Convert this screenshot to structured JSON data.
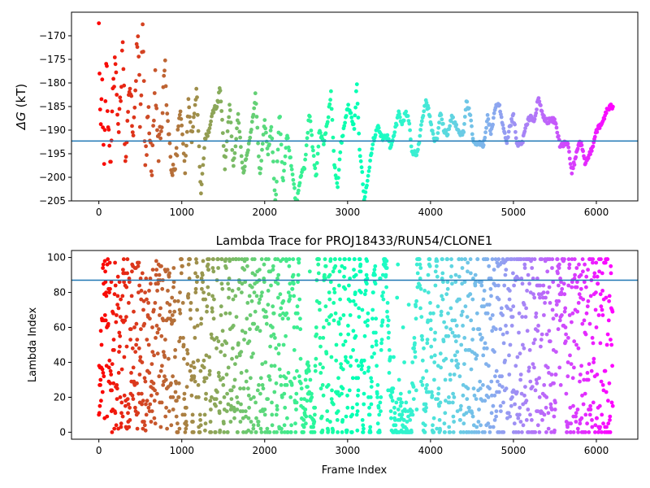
{
  "chart_data": [
    {
      "type": "scatter",
      "title": "",
      "xlabel": "",
      "ylabel": "ΔG (kT)",
      "ylabel_symbol": "ΔG",
      "ylabel_unit": "(kT)",
      "xlim": [
        -330,
        6500
      ],
      "ylim": [
        -205,
        -165
      ],
      "x_ticks": [
        0,
        1000,
        2000,
        3000,
        4000,
        5000,
        6000
      ],
      "x_tick_labels": [
        "0",
        "1000",
        "2000",
        "3000",
        "4000",
        "5000",
        "6000"
      ],
      "y_ticks": [
        -205,
        -200,
        -195,
        -190,
        -185,
        -180,
        -175,
        -170
      ],
      "y_tick_labels": [
        "−205",
        "−200",
        "−195",
        "−190",
        "−185",
        "−180",
        "−175",
        "−170"
      ],
      "hline": {
        "y": -192.3,
        "color": "#1f77b4"
      },
      "colormap": "rainbow (red at first frame → violet at last frame)",
      "x_max": 6200,
      "grid": false,
      "trace_anchors": [
        [
          0,
          -170
        ],
        [
          20,
          -190
        ],
        [
          40,
          -180
        ],
        [
          60,
          -200
        ],
        [
          90,
          -174
        ],
        [
          110,
          -188
        ],
        [
          140,
          -196
        ],
        [
          170,
          -181
        ],
        [
          200,
          -176
        ],
        [
          230,
          -192
        ],
        [
          260,
          -184
        ],
        [
          290,
          -170
        ],
        [
          320,
          -198
        ],
        [
          350,
          -186
        ],
        [
          380,
          -178
        ],
        [
          410,
          -194
        ],
        [
          440,
          -183
        ],
        [
          470,
          -166
        ],
        [
          500,
          -190
        ],
        [
          530,
          -168
        ],
        [
          560,
          -198
        ],
        [
          600,
          -185
        ],
        [
          640,
          -200
        ],
        [
          680,
          -180
        ],
        [
          720,
          -195
        ],
        [
          760,
          -188
        ],
        [
          800,
          -176
        ],
        [
          840,
          -192
        ],
        [
          880,
          -198
        ],
        [
          930,
          -196
        ],
        [
          990,
          -186
        ],
        [
          1040,
          -199
        ],
        [
          1080,
          -184
        ],
        [
          1120,
          -192
        ],
        [
          1180,
          -181
        ],
        [
          1230,
          -204
        ],
        [
          1280,
          -192
        ],
        [
          1330,
          -190
        ],
        [
          1380,
          -186
        ],
        [
          1440,
          -184
        ],
        [
          1460,
          -180
        ],
        [
          1520,
          -198
        ],
        [
          1580,
          -184
        ],
        [
          1620,
          -198
        ],
        [
          1680,
          -187
        ],
        [
          1740,
          -199
        ],
        [
          1800,
          -194
        ],
        [
          1860,
          -187
        ],
        [
          1890,
          -182
        ],
        [
          1940,
          -200
        ],
        [
          2000,
          -188
        ],
        [
          2040,
          -195
        ],
        [
          2080,
          -189
        ],
        [
          2130,
          -206
        ],
        [
          2180,
          -186
        ],
        [
          2220,
          -201
        ],
        [
          2270,
          -191
        ],
        [
          2310,
          -196
        ],
        [
          2350,
          -201
        ],
        [
          2380,
          -206
        ],
        [
          2430,
          -200
        ],
        [
          2480,
          -198
        ],
        [
          2540,
          -186
        ],
        [
          2580,
          -194
        ],
        [
          2620,
          -200
        ],
        [
          2660,
          -190
        ],
        [
          2710,
          -193
        ],
        [
          2760,
          -188
        ],
        [
          2800,
          -182
        ],
        [
          2840,
          -197
        ],
        [
          2880,
          -202
        ],
        [
          2920,
          -193
        ],
        [
          2960,
          -189
        ],
        [
          3000,
          -185
        ],
        [
          3040,
          -186
        ],
        [
          3080,
          -190
        ],
        [
          3110,
          -180
        ],
        [
          3140,
          -193
        ],
        [
          3170,
          -198
        ],
        [
          3200,
          -205
        ],
        [
          3250,
          -199
        ],
        [
          3300,
          -193
        ],
        [
          3360,
          -189
        ],
        [
          3420,
          -192
        ],
        [
          3480,
          -191
        ],
        [
          3520,
          -194
        ],
        [
          3560,
          -191
        ],
        [
          3620,
          -186
        ],
        [
          3660,
          -189
        ],
        [
          3700,
          -186
        ],
        [
          3740,
          -188
        ],
        [
          3780,
          -195
        ],
        [
          3840,
          -195
        ],
        [
          3900,
          -188
        ],
        [
          3940,
          -184
        ],
        [
          3980,
          -186
        ],
        [
          4040,
          -192
        ],
        [
          4080,
          -192
        ],
        [
          4120,
          -186
        ],
        [
          4160,
          -190
        ],
        [
          4200,
          -191
        ],
        [
          4260,
          -187
        ],
        [
          4300,
          -189
        ],
        [
          4360,
          -191
        ],
        [
          4400,
          -190
        ],
        [
          4430,
          -184
        ],
        [
          4470,
          -186
        ],
        [
          4520,
          -193
        ],
        [
          4580,
          -193
        ],
        [
          4640,
          -193
        ],
        [
          4690,
          -187
        ],
        [
          4730,
          -191
        ],
        [
          4780,
          -185
        ],
        [
          4830,
          -185
        ],
        [
          4880,
          -190
        ],
        [
          4920,
          -193
        ],
        [
          4960,
          -189
        ],
        [
          5000,
          -187
        ],
        [
          5040,
          -193
        ],
        [
          5100,
          -193
        ],
        [
          5140,
          -190
        ],
        [
          5200,
          -187
        ],
        [
          5260,
          -188
        ],
        [
          5300,
          -183
        ],
        [
          5340,
          -186
        ],
        [
          5380,
          -188
        ],
        [
          5440,
          -188
        ],
        [
          5500,
          -188
        ],
        [
          5560,
          -193
        ],
        [
          5620,
          -193
        ],
        [
          5660,
          -193
        ],
        [
          5700,
          -199
        ],
        [
          5750,
          -196
        ],
        [
          5780,
          -193
        ],
        [
          5820,
          -193
        ],
        [
          5860,
          -197
        ],
        [
          5900,
          -196
        ],
        [
          5960,
          -193
        ],
        [
          6000,
          -190
        ],
        [
          6060,
          -189
        ],
        [
          6120,
          -186
        ],
        [
          6180,
          -185
        ]
      ]
    },
    {
      "type": "scatter",
      "title": "Lambda Trace for PROJ18433/RUN54/CLONE1",
      "xlabel": "Frame Index",
      "ylabel": "Lambda Index",
      "xlim": [
        -330,
        6500
      ],
      "ylim": [
        -4,
        104
      ],
      "x_ticks": [
        0,
        1000,
        2000,
        3000,
        4000,
        5000,
        6000
      ],
      "x_tick_labels": [
        "0",
        "1000",
        "2000",
        "3000",
        "4000",
        "5000",
        "6000"
      ],
      "y_ticks": [
        0,
        20,
        40,
        60,
        80,
        100
      ],
      "y_tick_labels": [
        "0",
        "20",
        "40",
        "60",
        "80",
        "100"
      ],
      "hline": {
        "y": 87,
        "color": "#1f77b4"
      },
      "colormap": "rainbow (red at first frame → violet at last frame)",
      "x_max": 6200,
      "y_range": [
        0,
        99
      ],
      "grid": false
    }
  ]
}
